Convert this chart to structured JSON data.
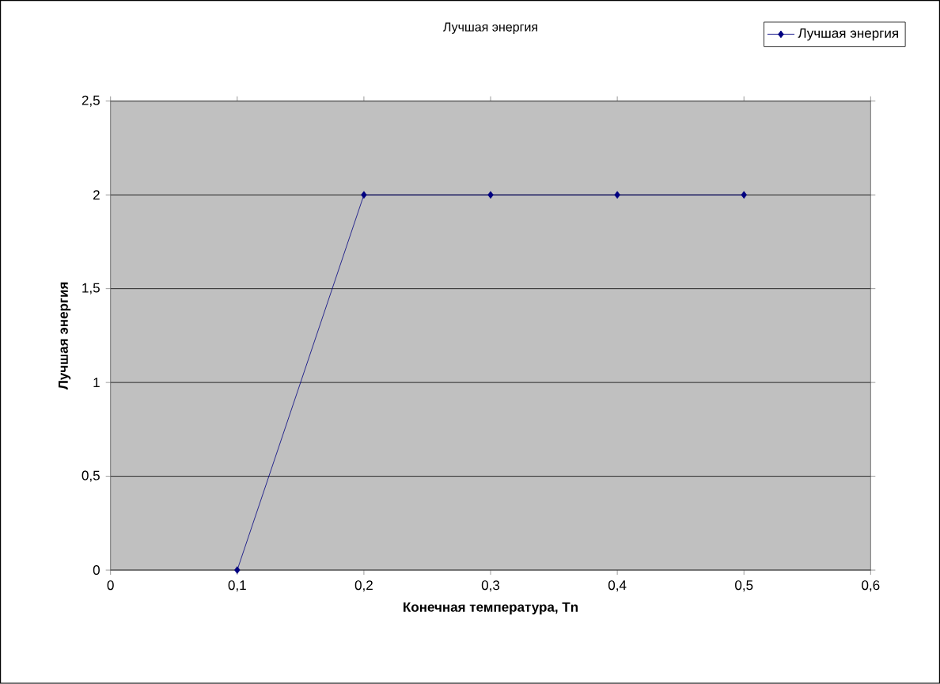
{
  "chart_data": {
    "type": "line",
    "title": "Лучшая энергия",
    "xlabel": "Конечная температура, Tn",
    "ylabel": "Лучшая энергия",
    "x": [
      0.1,
      0.2,
      0.3,
      0.4,
      0.5
    ],
    "series": [
      {
        "name": "Лучшая энергия",
        "color": "#000080",
        "values": [
          0,
          2,
          2,
          2,
          2
        ]
      }
    ],
    "xlim": [
      0,
      0.6
    ],
    "ylim": [
      0,
      2.5
    ],
    "xticks": [
      0,
      {
        "value": 0.1,
        "label": "0,1"
      },
      {
        "value": 0.2,
        "label": "0,2"
      },
      {
        "value": 0.3,
        "label": "0,3"
      },
      {
        "value": 0.4,
        "label": "0,4"
      },
      {
        "value": 0.5,
        "label": "0,5"
      },
      {
        "value": 0.6,
        "label": "0,6"
      }
    ],
    "yticks": [
      0,
      {
        "value": 0.5,
        "label": "0,5"
      },
      1,
      {
        "value": 1.5,
        "label": "1,5"
      },
      2,
      {
        "value": 2.5,
        "label": "2,5"
      }
    ],
    "grid": "y",
    "legend": "top right",
    "marker": "diamond",
    "line_style": "solid"
  }
}
